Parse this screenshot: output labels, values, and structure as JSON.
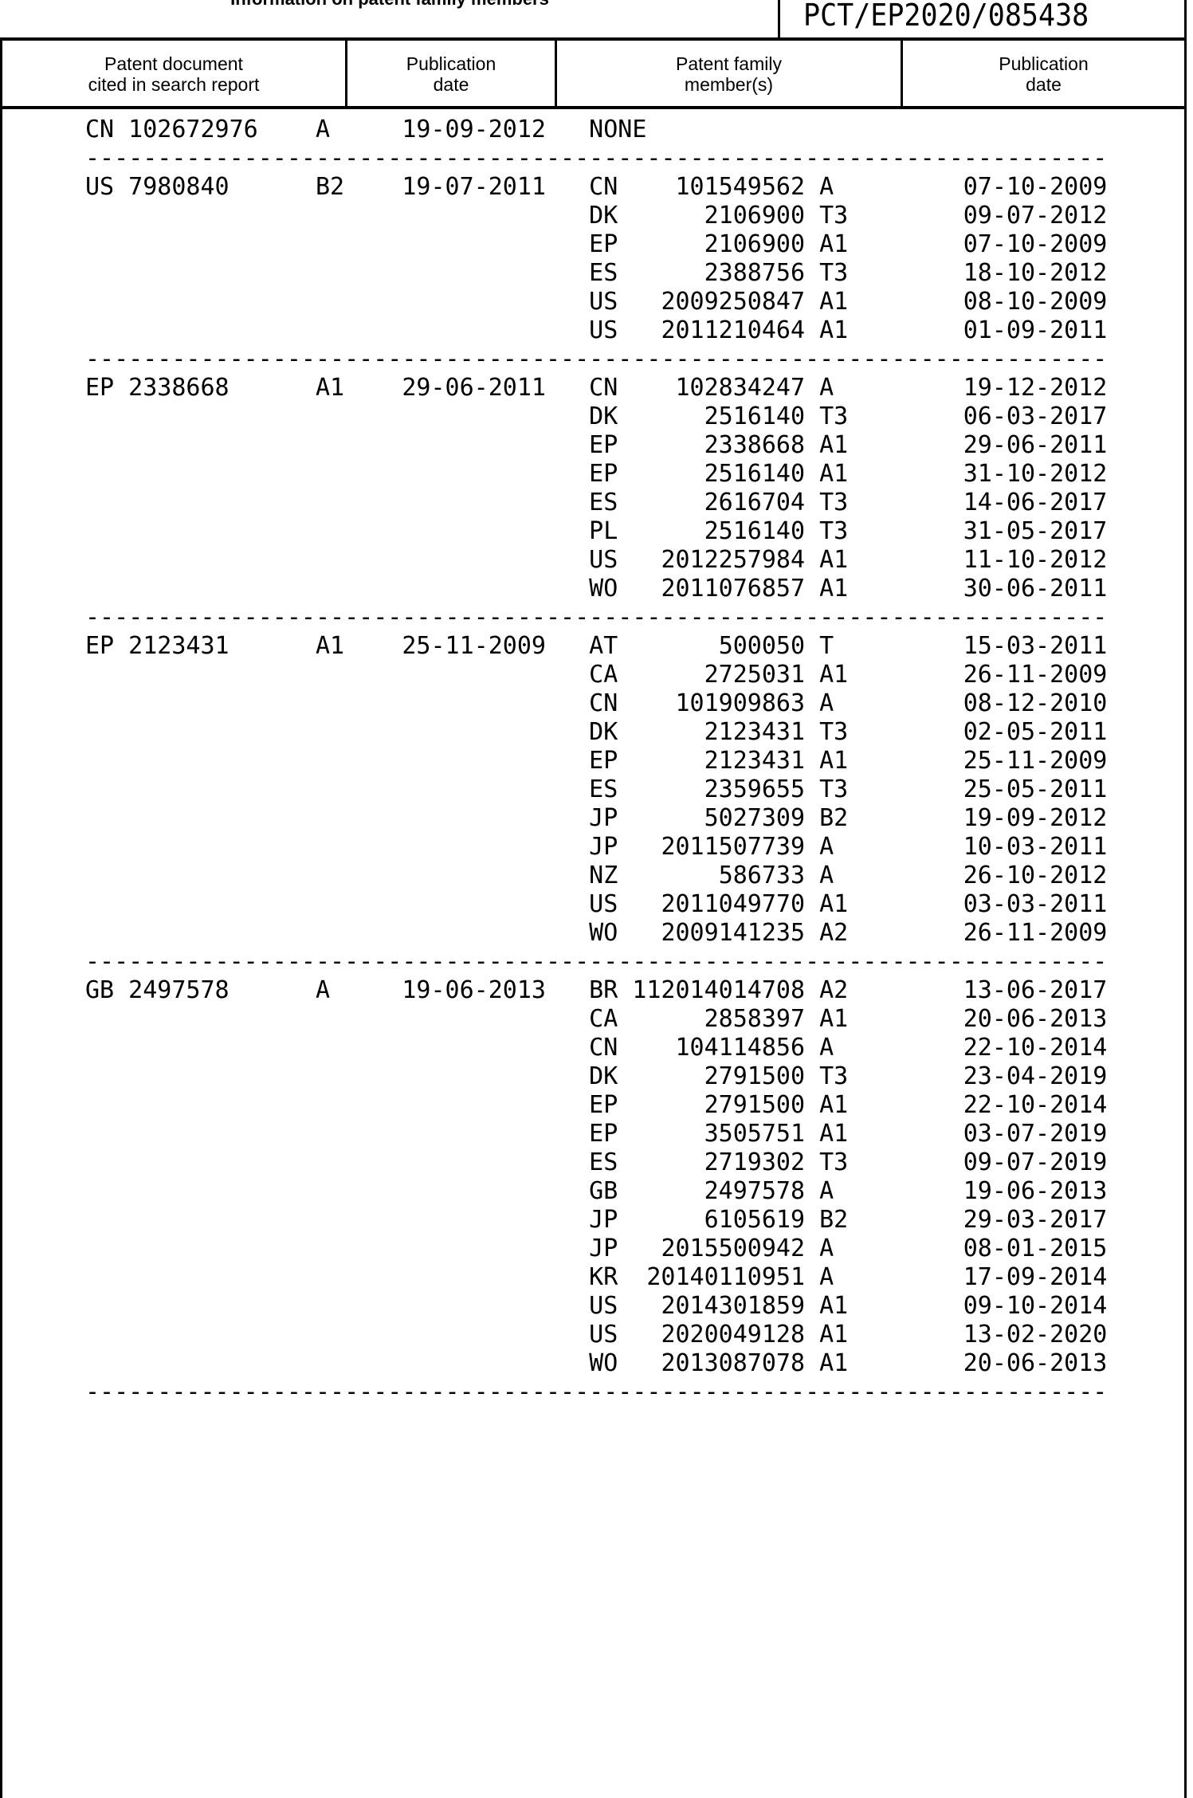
{
  "header": {
    "title": "Information on patent family members",
    "application_number": "PCT/EP2020/085438"
  },
  "columns": [
    [
      "Patent document",
      "cited in search report"
    ],
    [
      "Publication",
      "date"
    ],
    [
      "Patent family",
      "member(s)"
    ],
    [
      "Publication",
      "date"
    ]
  ],
  "separator": "-----------------------------------------------------------------------",
  "entries": [
    {
      "doc": "CN 102672976",
      "kind": "A",
      "date": "19-09-2012",
      "none": "NONE",
      "members": []
    },
    {
      "doc": "US 7980840",
      "kind": "B2",
      "date": "19-07-2011",
      "members": [
        [
          "CN",
          "101549562",
          "A",
          "07-10-2009"
        ],
        [
          "DK",
          "2106900",
          "T3",
          "09-07-2012"
        ],
        [
          "EP",
          "2106900",
          "A1",
          "07-10-2009"
        ],
        [
          "ES",
          "2388756",
          "T3",
          "18-10-2012"
        ],
        [
          "US",
          "2009250847",
          "A1",
          "08-10-2009"
        ],
        [
          "US",
          "2011210464",
          "A1",
          "01-09-2011"
        ]
      ]
    },
    {
      "doc": "EP 2338668",
      "kind": "A1",
      "date": "29-06-2011",
      "members": [
        [
          "CN",
          "102834247",
          "A",
          "19-12-2012"
        ],
        [
          "DK",
          "2516140",
          "T3",
          "06-03-2017"
        ],
        [
          "EP",
          "2338668",
          "A1",
          "29-06-2011"
        ],
        [
          "EP",
          "2516140",
          "A1",
          "31-10-2012"
        ],
        [
          "ES",
          "2616704",
          "T3",
          "14-06-2017"
        ],
        [
          "PL",
          "2516140",
          "T3",
          "31-05-2017"
        ],
        [
          "US",
          "2012257984",
          "A1",
          "11-10-2012"
        ],
        [
          "WO",
          "2011076857",
          "A1",
          "30-06-2011"
        ]
      ]
    },
    {
      "doc": "EP 2123431",
      "kind": "A1",
      "date": "25-11-2009",
      "members": [
        [
          "AT",
          "500050",
          "T",
          "15-03-2011"
        ],
        [
          "CA",
          "2725031",
          "A1",
          "26-11-2009"
        ],
        [
          "CN",
          "101909863",
          "A",
          "08-12-2010"
        ],
        [
          "DK",
          "2123431",
          "T3",
          "02-05-2011"
        ],
        [
          "EP",
          "2123431",
          "A1",
          "25-11-2009"
        ],
        [
          "ES",
          "2359655",
          "T3",
          "25-05-2011"
        ],
        [
          "JP",
          "5027309",
          "B2",
          "19-09-2012"
        ],
        [
          "JP",
          "2011507739",
          "A",
          "10-03-2011"
        ],
        [
          "NZ",
          "586733",
          "A",
          "26-10-2012"
        ],
        [
          "US",
          "2011049770",
          "A1",
          "03-03-2011"
        ],
        [
          "WO",
          "2009141235",
          "A2",
          "26-11-2009"
        ]
      ]
    },
    {
      "doc": "GB 2497578",
      "kind": "A",
      "date": "19-06-2013",
      "members": [
        [
          "BR",
          "112014014708",
          "A2",
          "13-06-2017"
        ],
        [
          "CA",
          "2858397",
          "A1",
          "20-06-2013"
        ],
        [
          "CN",
          "104114856",
          "A",
          "22-10-2014"
        ],
        [
          "DK",
          "2791500",
          "T3",
          "23-04-2019"
        ],
        [
          "EP",
          "2791500",
          "A1",
          "22-10-2014"
        ],
        [
          "EP",
          "3505751",
          "A1",
          "03-07-2019"
        ],
        [
          "ES",
          "2719302",
          "T3",
          "09-07-2019"
        ],
        [
          "GB",
          "2497578",
          "A",
          "19-06-2013"
        ],
        [
          "JP",
          "6105619",
          "B2",
          "29-03-2017"
        ],
        [
          "JP",
          "2015500942",
          "A",
          "08-01-2015"
        ],
        [
          "KR",
          "20140110951",
          "A",
          "17-09-2014"
        ],
        [
          "US",
          "2014301859",
          "A1",
          "09-10-2014"
        ],
        [
          "US",
          "2020049128",
          "A1",
          "13-02-2020"
        ],
        [
          "WO",
          "2013087078",
          "A1",
          "20-06-2013"
        ]
      ]
    }
  ]
}
